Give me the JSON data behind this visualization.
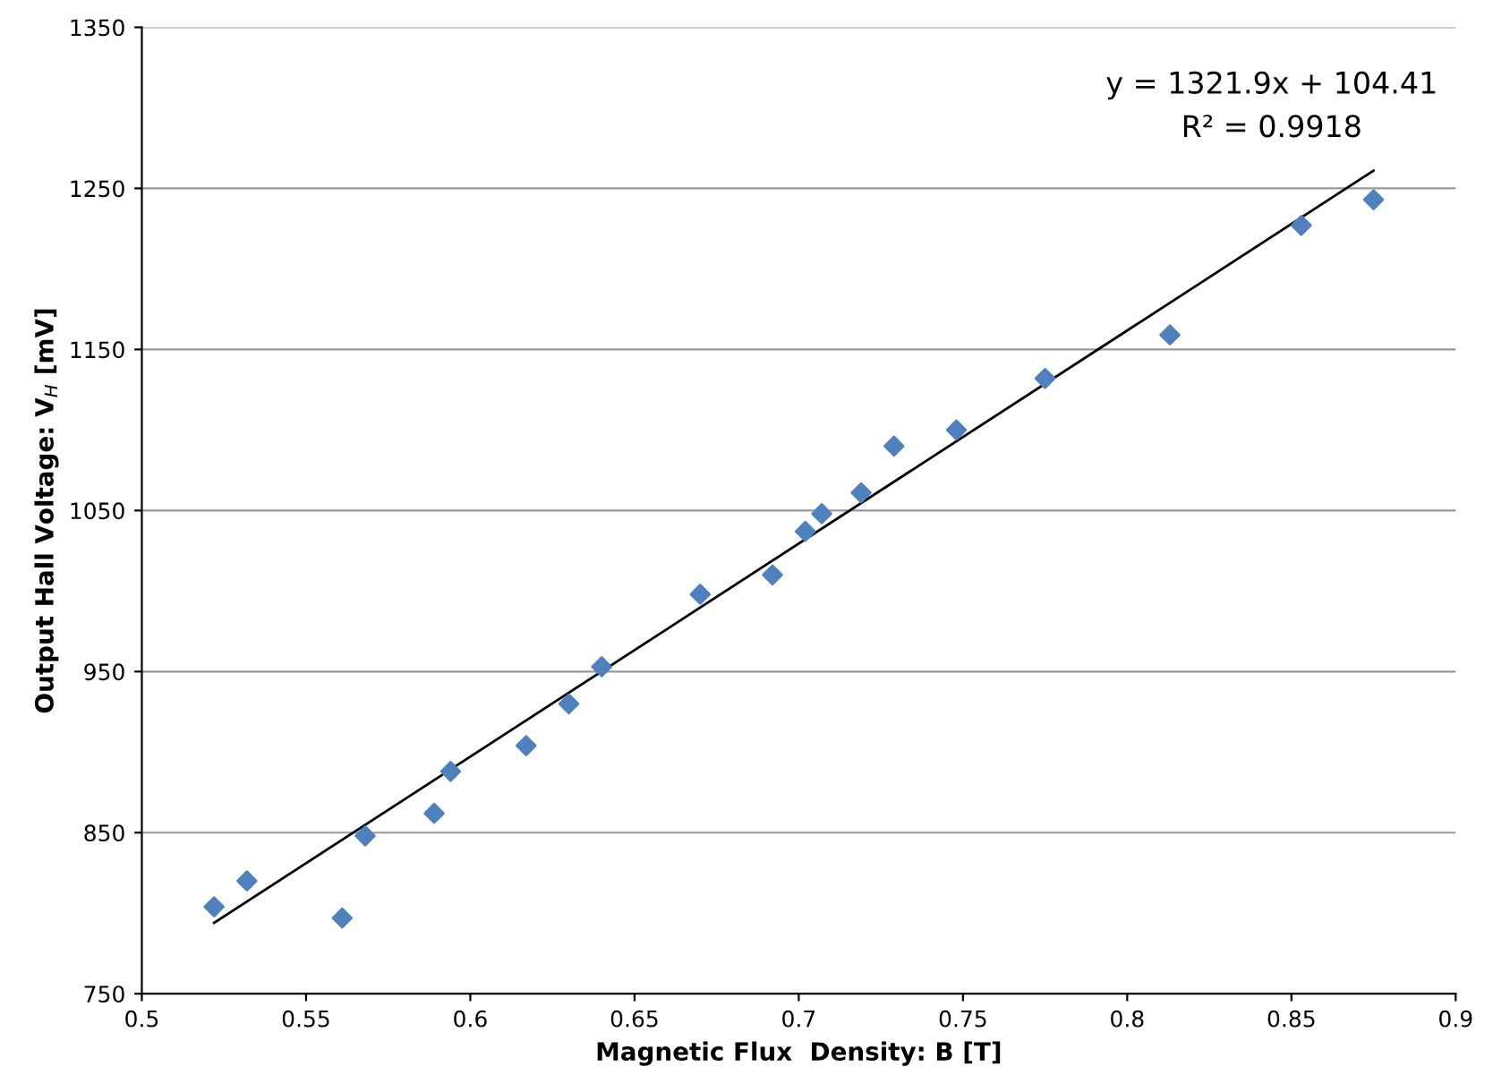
{
  "chart_data": {
    "type": "scatter",
    "xlabel": "Magnetic Flux  Density: B [T]",
    "ylabel": "Output Hall Voltage: V$_{H}$ [mV]",
    "xlim": [
      0.5,
      0.9
    ],
    "xticks": [
      0.5,
      0.55,
      0.6,
      0.65,
      0.7,
      0.75,
      0.8,
      0.85,
      0.9
    ],
    "ylim": [
      750,
      1350
    ],
    "yticks": [
      750,
      850,
      950,
      1050,
      1150,
      1250,
      1350
    ],
    "grid": "y",
    "legend": false,
    "annotations": [
      "y = 1321.9x + 104.41",
      "R² = 0.9918"
    ],
    "series": [
      {
        "marker": "diamond",
        "color": "#4f81bd",
        "x": [
          0.522,
          0.532,
          0.561,
          0.568,
          0.589,
          0.594,
          0.617,
          0.63,
          0.64,
          0.67,
          0.692,
          0.702,
          0.707,
          0.719,
          0.729,
          0.748,
          0.775,
          0.813,
          0.853,
          0.875
        ],
        "values": [
          804,
          820,
          797,
          848,
          862,
          888,
          904,
          930,
          953,
          998,
          1010,
          1037,
          1048,
          1061,
          1090,
          1100,
          1132,
          1159,
          1227,
          1243
        ]
      },
      {
        "type": "line",
        "marker": "none",
        "color": "#000000",
        "x": [
          0.522,
          0.875
        ],
        "values": [
          794,
          1261
        ]
      }
    ]
  }
}
